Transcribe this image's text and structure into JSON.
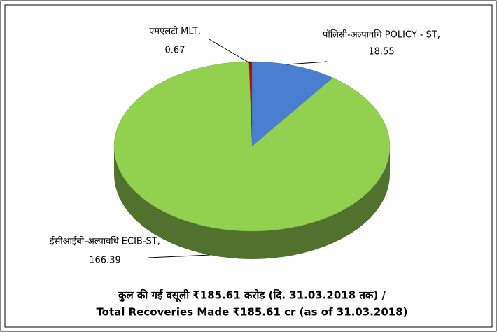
{
  "chart_data": {
    "type": "pie",
    "title": "कुल की गई वसूली ₹185.61 करोड़ (दि. 31.03.2018 तक) /",
    "subtitle": "Total Recoveries Made ₹185.61 cr (as of 31.03.2018)",
    "categories": [
      "एमएलटी MLT,",
      "पॉलिसी-अल्पावधि POLICY - ST,",
      "ईसीआईबी-अल्पावधि ECIB-ST,"
    ],
    "values": [
      0.67,
      18.55,
      166.39
    ],
    "colors": [
      "#c00000",
      "#4a7ed0",
      "#92d050"
    ]
  }
}
